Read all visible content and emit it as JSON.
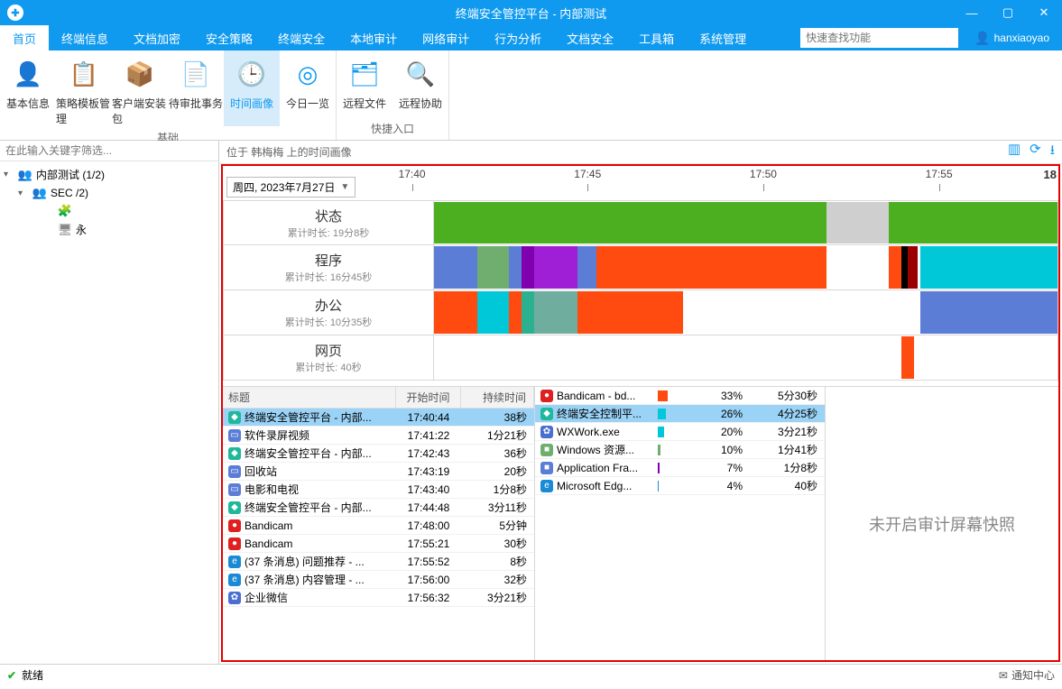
{
  "window": {
    "title": "终端安全管控平台 - 内部测试"
  },
  "menu": {
    "tabs": [
      "首页",
      "终端信息",
      "文档加密",
      "安全策略",
      "终端安全",
      "本地审计",
      "网络审计",
      "行为分析",
      "文档安全",
      "工具箱",
      "系统管理"
    ],
    "active_index": 0,
    "search_placeholder": "快速查找功能",
    "username": "hanxiaoyao"
  },
  "ribbon": {
    "groups": [
      {
        "label": "基础",
        "items": [
          {
            "label": "基本信息",
            "icon": "👤",
            "color": "#0f9af0"
          },
          {
            "label": "策略模板管理",
            "icon": "📋",
            "color": "#ff9a3c"
          },
          {
            "label": "客户端安装包",
            "icon": "📦",
            "color": "#ff7a1a"
          },
          {
            "label": "待审批事务",
            "icon": "📄",
            "color": "#0f9af0"
          },
          {
            "label": "时间画像",
            "icon": "🕒",
            "color": "#0f9af0",
            "active": true
          },
          {
            "label": "今日一览",
            "icon": "◎",
            "color": "#0f9af0"
          }
        ]
      },
      {
        "label": "快捷入口",
        "items": [
          {
            "label": "远程文件",
            "icon": "🗂",
            "color": "#0f9af0"
          },
          {
            "label": "远程协助",
            "icon": "🔍",
            "color": "#0f9af0"
          }
        ]
      }
    ]
  },
  "sidebar": {
    "filter_placeholder": "在此输入关键字筛选...",
    "tree": [
      {
        "depth": 0,
        "caret": "▾",
        "icon": "👥",
        "icon_color": "#0f9af0",
        "label": "内部测试 (1/2)"
      },
      {
        "depth": 1,
        "caret": "▾",
        "icon": "👥",
        "icon_color": "#0f9af0",
        "label": "SEC            /2)"
      },
      {
        "depth": 2,
        "caret": "",
        "icon": "🧩",
        "icon_color": "#ff7a1a",
        "label": " "
      },
      {
        "depth": 2,
        "caret": "",
        "icon": "🖥",
        "icon_color": "#888",
        "label": "永"
      }
    ]
  },
  "main": {
    "info": "位于 韩梅梅 上的时间画像",
    "date": "周四, 2023年7月27日",
    "time_ticks": [
      {
        "label": "17:40",
        "pct": 8
      },
      {
        "label": "17:45",
        "pct": 33
      },
      {
        "label": "17:50",
        "pct": 58
      },
      {
        "label": "17:55",
        "pct": 83
      }
    ],
    "end_label": "18",
    "tracks": [
      {
        "title": "状态",
        "sub": "累计时长: 19分8秒",
        "segs": [
          {
            "l": 0,
            "w": 63,
            "c": "#4caf1f"
          },
          {
            "l": 63,
            "w": 10,
            "c": "#cfcfcf"
          },
          {
            "l": 73,
            "w": 27,
            "c": "#4caf1f"
          }
        ]
      },
      {
        "title": "程序",
        "sub": "累计时长: 16分45秒",
        "segs": [
          {
            "l": 0,
            "w": 7,
            "c": "#5b7dd6"
          },
          {
            "l": 7,
            "w": 5,
            "c": "#6fae6f"
          },
          {
            "l": 12,
            "w": 2,
            "c": "#5b7dd6"
          },
          {
            "l": 14,
            "w": 2,
            "c": "#8000b0"
          },
          {
            "l": 16,
            "w": 7,
            "c": "#9f1fd6"
          },
          {
            "l": 23,
            "w": 3,
            "c": "#5b7dd6"
          },
          {
            "l": 26,
            "w": 12,
            "c": "#ff4a10"
          },
          {
            "l": 38,
            "w": 25,
            "c": "#ff4a10"
          },
          {
            "l": 73,
            "w": 2,
            "c": "#ff4a10"
          },
          {
            "l": 75,
            "w": 1,
            "c": "#000"
          },
          {
            "l": 76,
            "w": 1.5,
            "c": "#9a0000"
          },
          {
            "l": 78,
            "w": 22,
            "c": "#00c8d8"
          }
        ]
      },
      {
        "title": "办公",
        "sub": "累计时长: 10分35秒",
        "segs": [
          {
            "l": 0,
            "w": 7,
            "c": "#ff4a10"
          },
          {
            "l": 7,
            "w": 5,
            "c": "#00c8d8"
          },
          {
            "l": 12,
            "w": 2,
            "c": "#ff4a10"
          },
          {
            "l": 14,
            "w": 2,
            "c": "#2bb090"
          },
          {
            "l": 16,
            "w": 7,
            "c": "#6fae9f"
          },
          {
            "l": 23,
            "w": 3,
            "c": "#ff4a10"
          },
          {
            "l": 26,
            "w": 14,
            "c": "#ff4a10"
          },
          {
            "l": 78,
            "w": 22,
            "c": "#5b7dd6"
          }
        ]
      },
      {
        "title": "网页",
        "sub": "累计时长: 40秒",
        "segs": [
          {
            "l": 75,
            "w": 2,
            "c": "#ff4a10"
          }
        ]
      }
    ],
    "tableA": {
      "headers": [
        "标题",
        "开始时间",
        "持续时间"
      ],
      "rows": [
        {
          "icon": "◆",
          "ic": "#1fb89a",
          "t": "终端安全管控平台 - 内部...",
          "s": "17:40:44",
          "d": "38秒",
          "sel": true
        },
        {
          "icon": "▭",
          "ic": "#5b7dd6",
          "t": "软件录屏视频",
          "s": "17:41:22",
          "d": "1分21秒"
        },
        {
          "icon": "◆",
          "ic": "#1fb89a",
          "t": "终端安全管控平台 - 内部...",
          "s": "17:42:43",
          "d": "36秒"
        },
        {
          "icon": "▭",
          "ic": "#5b7dd6",
          "t": "回收站",
          "s": "17:43:19",
          "d": "20秒"
        },
        {
          "icon": "▭",
          "ic": "#5b7dd6",
          "t": "电影和电视",
          "s": "17:43:40",
          "d": "1分8秒"
        },
        {
          "icon": "◆",
          "ic": "#1fb89a",
          "t": "终端安全管控平台 - 内部...",
          "s": "17:44:48",
          "d": "3分11秒"
        },
        {
          "icon": "●",
          "ic": "#e02020",
          "t": "Bandicam",
          "s": "17:48:00",
          "d": "5分钟"
        },
        {
          "icon": "●",
          "ic": "#e02020",
          "t": "Bandicam",
          "s": "17:55:21",
          "d": "30秒"
        },
        {
          "icon": "e",
          "ic": "#1a8ad6",
          "t": "(37 条消息) 问题推荐 - ...",
          "s": "17:55:52",
          "d": "8秒"
        },
        {
          "icon": "e",
          "ic": "#1a8ad6",
          "t": "(37 条消息) 内容管理 - ...",
          "s": "17:56:00",
          "d": "32秒"
        },
        {
          "icon": "✿",
          "ic": "#4a6fd0",
          "t": "企业微信",
          "s": "17:56:32",
          "d": "3分21秒"
        }
      ]
    },
    "tableB": {
      "rows": [
        {
          "icon": "●",
          "ic": "#e02020",
          "t": "Bandicam - bd...",
          "bar": 33,
          "bc": "#ff4a10",
          "p": "33%",
          "d": "5分30秒"
        },
        {
          "icon": "◆",
          "ic": "#1fb89a",
          "t": "终端安全控制平...",
          "bar": 26,
          "bc": "#00c8d8",
          "p": "26%",
          "d": "4分25秒",
          "sel": true
        },
        {
          "icon": "✿",
          "ic": "#4a6fd0",
          "t": "WXWork.exe",
          "bar": 20,
          "bc": "#00c8d8",
          "p": "20%",
          "d": "3分21秒"
        },
        {
          "icon": "■",
          "ic": "#6fae6f",
          "t": "Windows 资源...",
          "bar": 10,
          "bc": "#6fae6f",
          "p": "10%",
          "d": "1分41秒"
        },
        {
          "icon": "■",
          "ic": "#5b7dd6",
          "t": "Application Fra...",
          "bar": 7,
          "bc": "#8000b0",
          "p": "7%",
          "d": "1分8秒"
        },
        {
          "icon": "e",
          "ic": "#1a8ad6",
          "t": "Microsoft Edg...",
          "bar": 4,
          "bc": "#1a8ad6",
          "p": "4%",
          "d": "40秒"
        }
      ]
    },
    "snapshot_msg": "未开启审计屏幕快照"
  },
  "status": {
    "ready": "就绪",
    "notify": "通知中心"
  }
}
